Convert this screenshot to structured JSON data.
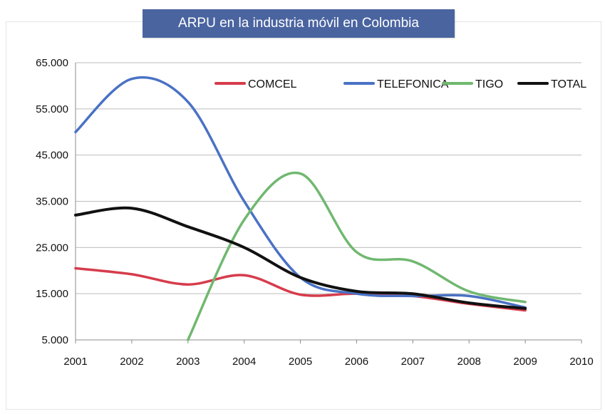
{
  "chart_data": {
    "type": "line",
    "title": "ARPU en la industria móvil en Colombia",
    "x_ticks": [
      "2001",
      "2002",
      "2003",
      "2004",
      "2005",
      "2006",
      "2007",
      "2008",
      "2009",
      "2010"
    ],
    "y_ticks": [
      "5.000",
      "15.000",
      "25.000",
      "35.000",
      "45.000",
      "55.000",
      "65.000"
    ],
    "xlim": [
      2001,
      2010
    ],
    "ylim": [
      5000,
      65000
    ],
    "grid": "horizontal",
    "legend_position": "top-right",
    "series": [
      {
        "name": "COMCEL",
        "color": "#d63c4c",
        "x": [
          2001,
          2002,
          2003,
          2004,
          2005,
          2006,
          2007,
          2008,
          2009
        ],
        "values": [
          20500,
          19200,
          17000,
          19000,
          14800,
          15000,
          14500,
          12800,
          11400
        ]
      },
      {
        "name": "TELEFONICA",
        "color": "#4a72c4",
        "x": [
          2001,
          2002,
          2003,
          2004,
          2005,
          2006,
          2007,
          2008,
          2009
        ],
        "values": [
          50000,
          61500,
          56500,
          35000,
          18500,
          15000,
          14500,
          14500,
          12000
        ]
      },
      {
        "name": "TIGO",
        "color": "#70b870",
        "x": [
          2003,
          2004,
          2005,
          2006,
          2007,
          2008,
          2009
        ],
        "values": [
          5000,
          31000,
          41000,
          24000,
          22000,
          15500,
          13200
        ]
      },
      {
        "name": "TOTAL",
        "color": "#111111",
        "x": [
          2001,
          2002,
          2003,
          2004,
          2005,
          2006,
          2007,
          2008,
          2009
        ],
        "values": [
          32000,
          33500,
          29500,
          25000,
          18500,
          15500,
          15000,
          13000,
          11800
        ]
      }
    ]
  }
}
